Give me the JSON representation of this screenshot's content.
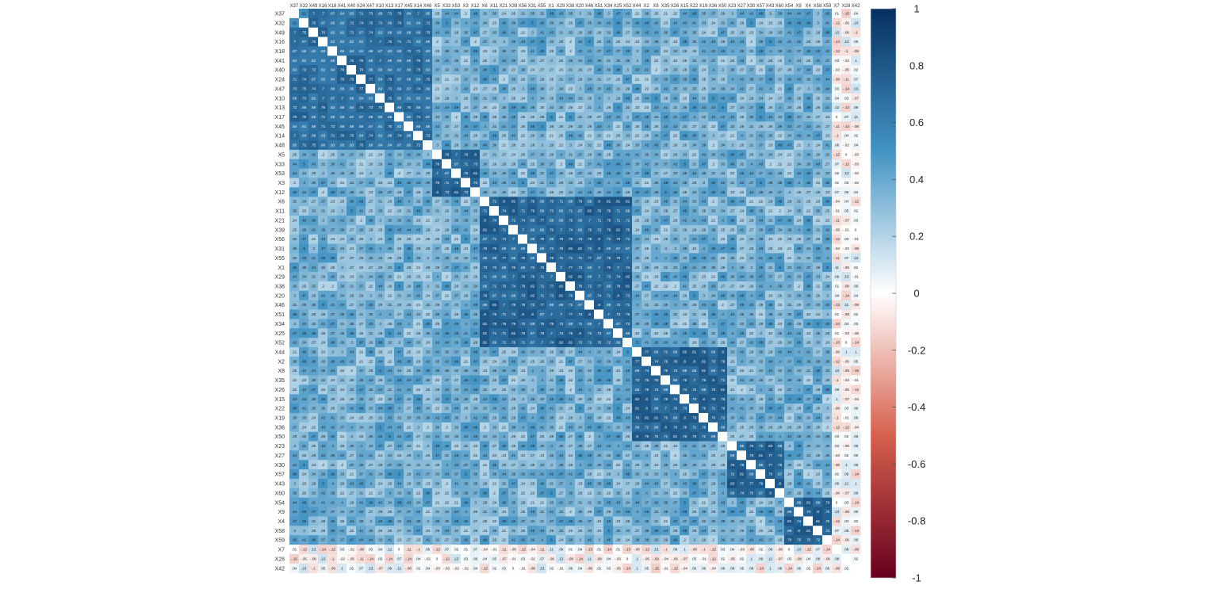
{
  "chart_data": {
    "type": "heatmap",
    "title": "",
    "variables": [
      "X37",
      "X32",
      "X49",
      "X16",
      "X18",
      "X41",
      "X40",
      "X24",
      "X47",
      "X10",
      "X13",
      "X17",
      "X45",
      "X14",
      "X48",
      "X5",
      "X33",
      "X53",
      "X3",
      "X12",
      "X6",
      "X11",
      "X21",
      "X39",
      "X56",
      "X31",
      "X55",
      "X1",
      "X29",
      "X38",
      "X20",
      "X46",
      "X51",
      "X34",
      "X25",
      "X52",
      "X44",
      "X2",
      "X8",
      "X35",
      "X26",
      "X15",
      "X22",
      "X19",
      "X36",
      "X50",
      "X23",
      "X27",
      "X30",
      "X57",
      "X43",
      "X60",
      "X54",
      "X9",
      "X4",
      "X58",
      "X59",
      "X7",
      "X28",
      "X42"
    ],
    "blocks": [
      {
        "start": 0,
        "end": 14,
        "within": 0.67,
        "first_off_diagonal": 0.52
      },
      {
        "start": 15,
        "end": 19,
        "within": 0.72
      },
      {
        "start": 20,
        "end": 35,
        "within": 0.72
      },
      {
        "start": 36,
        "end": 45,
        "within": 0.72
      },
      {
        "start": 46,
        "end": 51,
        "within": 0.73
      },
      {
        "start": 52,
        "end": 56,
        "within": 0.74
      }
    ],
    "between_block_correlation": [
      0.2,
      0.5
    ],
    "uncorrelated_variables": [
      "X7",
      "X28",
      "X42"
    ],
    "uncorrelated_range": [
      -0.15,
      0.14
    ],
    "diagonal_value": 1,
    "color_scale": {
      "min": -1,
      "max": 1,
      "ticks": [
        1,
        0.8,
        0.6,
        0.4,
        0.2,
        0,
        -0.2,
        -0.4,
        -0.6,
        -0.8,
        -1
      ],
      "stops": [
        {
          "v": -1,
          "color": "#67001f"
        },
        {
          "v": -0.5,
          "color": "#d6604d"
        },
        {
          "v": 0,
          "color": "#ffffff"
        },
        {
          "v": 0.5,
          "color": "#4393c3"
        },
        {
          "v": 1,
          "color": "#053061"
        }
      ]
    },
    "grid": false,
    "legend": "right"
  }
}
